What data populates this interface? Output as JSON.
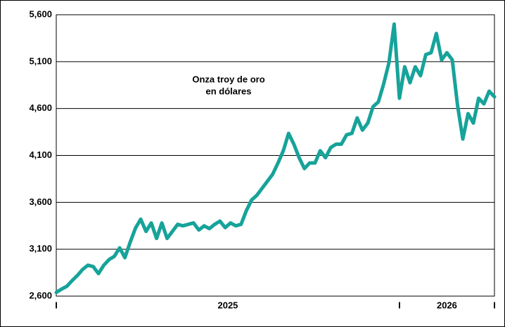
{
  "chart_data": {
    "type": "line",
    "title": [
      "Onza troy de oro",
      "en dólares"
    ],
    "color": "#16a39a",
    "values": [
      2640,
      2675,
      2705,
      2765,
      2820,
      2885,
      2930,
      2915,
      2840,
      2930,
      2990,
      3025,
      3115,
      3010,
      3175,
      3325,
      3420,
      3290,
      3380,
      3215,
      3380,
      3215,
      3290,
      3365,
      3350,
      3365,
      3380,
      3305,
      3350,
      3320,
      3365,
      3400,
      3330,
      3380,
      3350,
      3365,
      3510,
      3625,
      3675,
      3750,
      3825,
      3900,
      4020,
      4150,
      4335,
      4220,
      4075,
      3960,
      4020,
      4020,
      4150,
      4075,
      4185,
      4220,
      4220,
      4320,
      4335,
      4500,
      4370,
      4445,
      4620,
      4670,
      4860,
      5085,
      5500,
      4710,
      5045,
      4875,
      5045,
      4950,
      5175,
      5195,
      5400,
      5120,
      5195,
      5120,
      4635,
      4275,
      4545,
      4445,
      4710,
      4650,
      4785,
      4725
    ],
    "xlim": [
      0,
      83
    ],
    "xticks": [
      {
        "value": 0,
        "label": "I"
      },
      {
        "value": 32.5,
        "label": "2025"
      },
      {
        "value": 65,
        "label": "I"
      },
      {
        "value": 74,
        "label": "2026"
      },
      {
        "value": 83,
        "label": "I"
      }
    ],
    "ylim": [
      2600,
      5600
    ],
    "yticks": [
      {
        "value": 2600,
        "label": "2,600"
      },
      {
        "value": 3100,
        "label": "3,100"
      },
      {
        "value": 3600,
        "label": "3,600"
      },
      {
        "value": 4100,
        "label": "4,100"
      },
      {
        "value": 4600,
        "label": "4,600"
      },
      {
        "value": 5100,
        "label": "5,100"
      },
      {
        "value": 5600,
        "label": "5,600"
      }
    ],
    "grid": true
  }
}
